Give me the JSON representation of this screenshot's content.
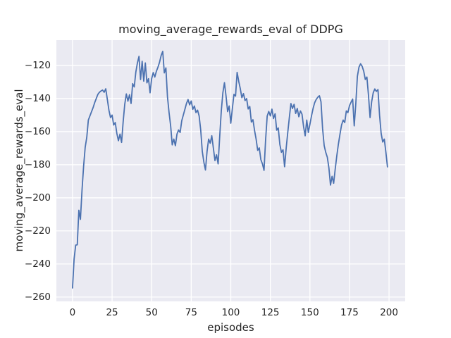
{
  "figure": {
    "kind": "matplotlib-seaborn line plot"
  },
  "chart_data": {
    "type": "line",
    "title": "moving_average_rewards_eval of DDPG",
    "xlabel": "episodes",
    "ylabel": "moving_average_rewards_eval",
    "x_ticks": [
      0,
      25,
      50,
      75,
      100,
      125,
      150,
      175,
      200
    ],
    "y_ticks": [
      -120,
      -140,
      -160,
      -180,
      -200,
      -220,
      -240,
      -260
    ],
    "xlim": [
      -10.2,
      210.2
    ],
    "ylim": [
      -262.6,
      -104.7
    ],
    "grid": true,
    "legend": "none",
    "styles": {
      "line_color": "#4c72b0",
      "axes_background": "#eaeaf2",
      "grid_color": "#ffffff",
      "text_color": "#262626",
      "line_width": 1.8,
      "grid_width": 1.3
    },
    "series": [
      {
        "name": "moving_average_rewards_eval",
        "x_start": 0,
        "x_step": 1,
        "values": [
          -254.5,
          -237,
          -228.6,
          -228.4,
          -207.5,
          -213,
          -195.5,
          -181,
          -169.5,
          -163.5,
          -153,
          -150.5,
          -148,
          -145.5,
          -142.5,
          -140,
          -137.5,
          -136.2,
          -135.4,
          -134.9,
          -136.2,
          -134.1,
          -140.5,
          -147,
          -151.5,
          -150,
          -156,
          -154.5,
          -161,
          -165.5,
          -161.5,
          -166.5,
          -154,
          -143.5,
          -137.2,
          -141.6,
          -137.7,
          -143,
          -131,
          -133,
          -124,
          -118.5,
          -114.5,
          -128.5,
          -117.5,
          -129.5,
          -118.5,
          -130.5,
          -128,
          -136.5,
          -128,
          -124.3,
          -127,
          -123.5,
          -121,
          -118,
          -114,
          -111.5,
          -124.5,
          -121.5,
          -139,
          -148.5,
          -156.5,
          -168,
          -164.5,
          -168.5,
          -161.5,
          -159,
          -160.5,
          -153.5,
          -150,
          -146.5,
          -143,
          -140.6,
          -143.8,
          -141.5,
          -146.5,
          -144.5,
          -148.5,
          -147,
          -150.5,
          -159,
          -172,
          -178.5,
          -183.2,
          -172,
          -164.5,
          -167,
          -162.5,
          -170,
          -177.5,
          -174,
          -179.5,
          -163,
          -147.5,
          -136.5,
          -130.4,
          -138.5,
          -147.9,
          -144.5,
          -154.9,
          -146,
          -137.5,
          -138.5,
          -124.2,
          -129.5,
          -134,
          -139.5,
          -137,
          -141.2,
          -140,
          -146.3,
          -144.8,
          -154.2,
          -152.8,
          -159.2,
          -164.5,
          -171.3,
          -169.8,
          -176.9,
          -179.5,
          -183.4,
          -165,
          -150.6,
          -147.8,
          -150.5,
          -146.4,
          -152.1,
          -149.2,
          -159.1,
          -157.8,
          -167.7,
          -172.5,
          -171,
          -181.2,
          -170,
          -160.5,
          -151.5,
          -143,
          -146,
          -143.5,
          -149,
          -146,
          -151,
          -147.5,
          -149.5,
          -157,
          -162.5,
          -153,
          -160.5,
          -155.5,
          -150.5,
          -146,
          -142.5,
          -140.5,
          -139.2,
          -138.3,
          -142,
          -158,
          -168.4,
          -172.5,
          -175.5,
          -182,
          -192.3,
          -187,
          -191.2,
          -182.5,
          -174.5,
          -167.5,
          -161.5,
          -156,
          -153,
          -154.5,
          -147.5,
          -148.5,
          -144.3,
          -142.2,
          -140.3,
          -156.5,
          -143,
          -126.5,
          -121,
          -119,
          -120.5,
          -123.5,
          -128.5,
          -127,
          -138,
          -151.5,
          -142,
          -136.5,
          -134.2,
          -135.7,
          -134.6,
          -150,
          -161,
          -166.3,
          -164.5,
          -172.5,
          -181.3
        ]
      }
    ]
  }
}
